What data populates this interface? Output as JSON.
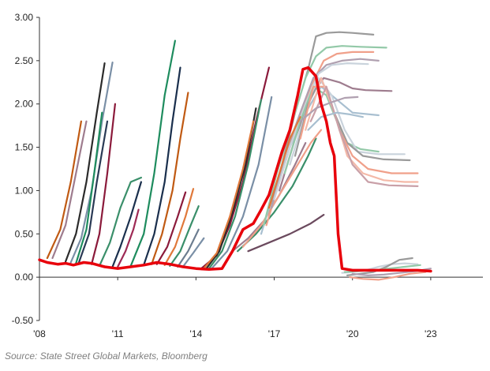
{
  "source": "Source: State Street Global Markets, Bloomberg",
  "chart_data": {
    "type": "line",
    "title": "",
    "xlabel": "",
    "ylabel": "",
    "xlim": [
      2008,
      2025
    ],
    "ylim": [
      -0.5,
      3.0
    ],
    "x_ticks": [
      2008,
      2011,
      2014,
      2017,
      2020,
      2023
    ],
    "x_tick_labels": [
      "'08",
      "'11",
      "'14",
      "'17",
      "'20",
      "'23"
    ],
    "y_ticks": [
      3.0,
      2.5,
      2.0,
      1.5,
      1.0,
      0.5,
      0.0,
      -0.5
    ],
    "y_tick_labels": [
      "3.00",
      "2.50",
      "2.00",
      "1.50",
      "1.00",
      "0.50",
      "0.00",
      "-0.50"
    ],
    "grid": false,
    "legend": "none",
    "highlight": {
      "color": "#e8000b",
      "x": [
        2008.0,
        2008.3,
        2008.7,
        2009.0,
        2009.3,
        2009.7,
        2010.0,
        2010.5,
        2011.0,
        2011.5,
        2012.0,
        2012.5,
        2013.0,
        2013.5,
        2014.0,
        2014.5,
        2015.0,
        2015.4,
        2015.8,
        2016.2,
        2016.5,
        2016.8,
        2017.0,
        2017.3,
        2017.6,
        2017.9,
        2018.1,
        2018.3,
        2018.6,
        2018.8,
        2019.0,
        2019.15,
        2019.3,
        2019.45,
        2019.6,
        2020.0,
        2020.5,
        2021.0,
        2021.5,
        2022.0,
        2022.5,
        2023.0
      ],
      "y": [
        0.2,
        0.17,
        0.15,
        0.16,
        0.14,
        0.17,
        0.16,
        0.12,
        0.1,
        0.12,
        0.14,
        0.17,
        0.15,
        0.12,
        0.1,
        0.09,
        0.1,
        0.3,
        0.55,
        0.62,
        0.78,
        0.95,
        1.15,
        1.45,
        1.7,
        2.1,
        2.4,
        2.42,
        2.32,
        2.0,
        1.8,
        1.55,
        1.4,
        0.5,
        0.1,
        0.08,
        0.08,
        0.08,
        0.08,
        0.08,
        0.08,
        0.07
      ]
    },
    "series": [
      {
        "color": "#2b2b2b",
        "x": [
          2009.0,
          2009.4,
          2009.8,
          2010.2,
          2010.5
        ],
        "y": [
          0.18,
          0.5,
          1.1,
          1.9,
          2.47
        ]
      },
      {
        "color": "#7a8fa6",
        "x": [
          2009.2,
          2009.6,
          2010.0,
          2010.4,
          2010.8
        ],
        "y": [
          0.17,
          0.45,
          1.0,
          1.8,
          2.48
        ]
      },
      {
        "color": "#9e7c8e",
        "x": [
          2008.5,
          2009.0,
          2009.4,
          2009.8
        ],
        "y": [
          0.22,
          0.6,
          1.2,
          1.8
        ]
      },
      {
        "color": "#c05a13",
        "x": [
          2008.3,
          2008.8,
          2009.2,
          2009.6
        ],
        "y": [
          0.22,
          0.55,
          1.1,
          1.8
        ]
      },
      {
        "color": "#1e8c5e",
        "x": [
          2009.4,
          2009.8,
          2010.1,
          2010.4
        ],
        "y": [
          0.16,
          0.55,
          1.2,
          1.9
        ]
      },
      {
        "color": "#2a3a55",
        "x": [
          2009.5,
          2009.9,
          2010.2,
          2010.6
        ],
        "y": [
          0.16,
          0.5,
          1.1,
          1.8
        ]
      },
      {
        "color": "#8b1a3b",
        "x": [
          2010.0,
          2010.3,
          2010.6,
          2010.9
        ],
        "y": [
          0.15,
          0.5,
          1.2,
          2.0
        ]
      },
      {
        "color": "#3a8f6a",
        "x": [
          2010.3,
          2010.7,
          2011.1,
          2011.5,
          2011.9
        ],
        "y": [
          0.13,
          0.4,
          0.8,
          1.1,
          1.15
        ]
      },
      {
        "color": "#1a2f4d",
        "x": [
          2010.8,
          2011.1,
          2011.5,
          2011.9
        ],
        "y": [
          0.12,
          0.35,
          0.7,
          1.1
        ]
      },
      {
        "color": "#9e2a55",
        "x": [
          2011.0,
          2011.3,
          2011.6,
          2011.8
        ],
        "y": [
          0.12,
          0.3,
          0.55,
          0.78
        ]
      },
      {
        "color": "#1e8c5e",
        "x": [
          2011.5,
          2012.0,
          2012.4,
          2012.8,
          2013.2
        ],
        "y": [
          0.13,
          0.5,
          1.2,
          2.1,
          2.73
        ]
      },
      {
        "color": "#1a2f4d",
        "x": [
          2012.0,
          2012.4,
          2012.8,
          2013.1,
          2013.4
        ],
        "y": [
          0.14,
          0.5,
          1.1,
          1.8,
          2.42
        ]
      },
      {
        "color": "#c05a13",
        "x": [
          2012.3,
          2012.7,
          2013.1,
          2013.4,
          2013.7
        ],
        "y": [
          0.15,
          0.5,
          1.0,
          1.6,
          2.13
        ]
      },
      {
        "color": "#8b1a3b",
        "x": [
          2012.5,
          2012.9,
          2013.3,
          2013.6
        ],
        "y": [
          0.15,
          0.35,
          0.7,
          0.98
        ]
      },
      {
        "color": "#e0783a",
        "x": [
          2012.8,
          2013.2,
          2013.6,
          2013.9
        ],
        "y": [
          0.14,
          0.35,
          0.7,
          1.02
        ]
      },
      {
        "color": "#3a8f6a",
        "x": [
          2013.0,
          2013.4,
          2013.8,
          2014.1
        ],
        "y": [
          0.13,
          0.3,
          0.6,
          0.82
        ]
      },
      {
        "color": "#6b7c8f",
        "x": [
          2013.3,
          2013.7,
          2014.1
        ],
        "y": [
          0.12,
          0.3,
          0.55
        ]
      },
      {
        "color": "#7a8fa6",
        "x": [
          2013.5,
          2013.9,
          2014.3
        ],
        "y": [
          0.12,
          0.28,
          0.45
        ]
      },
      {
        "color": "#8b1a3b",
        "x": [
          2014.2,
          2014.8,
          2015.3,
          2015.8,
          2016.3,
          2016.8
        ],
        "y": [
          0.1,
          0.25,
          0.6,
          1.1,
          1.8,
          2.42
        ]
      },
      {
        "color": "#3a8f6a",
        "x": [
          2014.5,
          2015.0,
          2015.5,
          2016.0,
          2016.5
        ],
        "y": [
          0.1,
          0.3,
          0.7,
          1.3,
          2.05
        ]
      },
      {
        "color": "#2b2b2b",
        "x": [
          2014.4,
          2014.9,
          2015.4,
          2015.9,
          2016.3
        ],
        "y": [
          0.1,
          0.3,
          0.75,
          1.3,
          1.95
        ]
      },
      {
        "color": "#e0783a",
        "x": [
          2014.3,
          2014.8,
          2015.3,
          2015.8,
          2016.2
        ],
        "y": [
          0.1,
          0.28,
          0.7,
          1.25,
          1.8
        ]
      },
      {
        "color": "#7a8fa6",
        "x": [
          2014.6,
          2015.2,
          2015.8,
          2016.4,
          2016.9
        ],
        "y": [
          0.1,
          0.3,
          0.7,
          1.3,
          2.08
        ]
      },
      {
        "color": "#9e7c8e",
        "x": [
          2015.4,
          2016.0,
          2016.6,
          2017.2,
          2017.8,
          2018.2
        ],
        "y": [
          0.3,
          0.45,
          0.65,
          0.95,
          1.3,
          1.55
        ]
      },
      {
        "color": "#3a8f6a",
        "x": [
          2015.6,
          2016.3,
          2017.0,
          2017.7,
          2018.3,
          2018.6
        ],
        "y": [
          0.3,
          0.5,
          0.75,
          1.05,
          1.4,
          1.6
        ]
      },
      {
        "color": "#f0a08a",
        "x": [
          2015.8,
          2016.5,
          2017.2,
          2017.8,
          2018.4,
          2018.8
        ],
        "y": [
          0.35,
          0.6,
          0.95,
          1.25,
          1.55,
          1.7
        ]
      },
      {
        "color": "#6b4a5e",
        "x": [
          2016.0,
          2016.8,
          2017.6,
          2018.4,
          2018.9
        ],
        "y": [
          0.3,
          0.4,
          0.5,
          0.62,
          0.72
        ]
      },
      {
        "color": "#a8bfd0",
        "x": [
          2016.5,
          2017.0,
          2017.6,
          2018.2,
          2018.8,
          2019.2,
          2020.0,
          2021.0
        ],
        "y": [
          0.5,
          1.0,
          1.5,
          1.9,
          2.2,
          2.1,
          1.9,
          1.87
        ]
      },
      {
        "color": "#9a9a9a",
        "x": [
          2016.8,
          2017.3,
          2017.8,
          2018.3,
          2018.6,
          2019.0,
          2019.5,
          2020.0,
          2020.8
        ],
        "y": [
          0.7,
          1.3,
          1.9,
          2.4,
          2.78,
          2.82,
          2.83,
          2.82,
          2.8
        ]
      },
      {
        "color": "#93c9a8",
        "x": [
          2016.6,
          2017.1,
          2017.7,
          2018.2,
          2018.6,
          2019.0,
          2019.6,
          2020.3,
          2021.3
        ],
        "y": [
          0.6,
          1.2,
          1.8,
          2.3,
          2.55,
          2.65,
          2.67,
          2.66,
          2.65
        ]
      },
      {
        "color": "#f0a08a",
        "x": [
          2016.7,
          2017.2,
          2017.8,
          2018.4,
          2018.9,
          2019.4,
          2020.0,
          2020.8
        ],
        "y": [
          0.6,
          1.1,
          1.7,
          2.2,
          2.5,
          2.58,
          2.6,
          2.6
        ]
      },
      {
        "color": "#b0a0b0",
        "x": [
          2016.9,
          2017.4,
          2018.0,
          2018.5,
          2019.0,
          2019.6,
          2020.3,
          2021.0
        ],
        "y": [
          0.8,
          1.4,
          1.9,
          2.3,
          2.45,
          2.5,
          2.52,
          2.5
        ]
      },
      {
        "color": "#c9d3dc",
        "x": [
          2017.0,
          2017.6,
          2018.2,
          2018.7,
          2019.2,
          2019.8,
          2020.6
        ],
        "y": [
          0.9,
          1.5,
          2.0,
          2.35,
          2.45,
          2.47,
          2.46
        ]
      },
      {
        "color": "#9e7c8e",
        "x": [
          2017.2,
          2017.8,
          2018.4,
          2018.9,
          2019.5,
          2020.0,
          2020.5,
          2021.5
        ],
        "y": [
          1.0,
          1.6,
          2.1,
          2.3,
          2.25,
          2.18,
          2.16,
          2.15
        ]
      },
      {
        "color": "#93c9a8",
        "x": [
          2017.4,
          2018.0,
          2018.5,
          2019.0,
          2019.4,
          2019.8,
          2020.3,
          2021.0
        ],
        "y": [
          1.2,
          1.8,
          2.2,
          2.1,
          1.8,
          1.55,
          1.48,
          1.45
        ]
      },
      {
        "color": "#c9d3dc",
        "x": [
          2017.6,
          2018.2,
          2018.7,
          2019.2,
          2019.7,
          2020.2,
          2021.0,
          2022.0
        ],
        "y": [
          1.3,
          1.9,
          2.3,
          2.1,
          1.7,
          1.45,
          1.42,
          1.42
        ]
      },
      {
        "color": "#9a9a9a",
        "x": [
          2017.8,
          2018.3,
          2018.8,
          2019.3,
          2019.8,
          2020.4,
          2021.2,
          2022.2
        ],
        "y": [
          1.4,
          2.0,
          2.3,
          1.9,
          1.55,
          1.4,
          1.36,
          1.35
        ]
      },
      {
        "color": "#f0a08a",
        "x": [
          2018.0,
          2018.5,
          2019.0,
          2019.5,
          2020.0,
          2020.6,
          2021.5,
          2022.5
        ],
        "y": [
          1.6,
          2.2,
          2.2,
          1.7,
          1.4,
          1.25,
          1.2,
          1.2
        ]
      },
      {
        "color": "#f4b9a8",
        "x": [
          2018.2,
          2018.8,
          2019.3,
          2019.8,
          2020.4,
          2021.2,
          2022.0,
          2022.5
        ],
        "y": [
          1.7,
          2.3,
          1.9,
          1.4,
          1.2,
          1.12,
          1.1,
          1.1
        ]
      },
      {
        "color": "#c9a0a8",
        "x": [
          2018.4,
          2019.0,
          2019.5,
          2020.0,
          2020.6,
          2021.4,
          2022.5
        ],
        "y": [
          1.8,
          2.2,
          1.7,
          1.3,
          1.1,
          1.06,
          1.05
        ]
      },
      {
        "color": "#b0a0b0",
        "x": [
          2018.0,
          2018.6,
          2019.2,
          2019.7,
          2020.2
        ],
        "y": [
          1.8,
          1.95,
          2.02,
          2.07,
          2.08
        ]
      },
      {
        "color": "#a8bfd0",
        "x": [
          2018.3,
          2018.8,
          2019.4,
          2019.9,
          2020.4
        ],
        "y": [
          1.7,
          1.85,
          1.9,
          1.88,
          1.85
        ]
      },
      {
        "color": "#e0783a",
        "x": [
          2016.8,
          2017.2,
          2017.6,
          2018.0
        ],
        "y": [
          0.8,
          1.2,
          1.6,
          1.85
        ]
      },
      {
        "color": "#c9d3dc",
        "x": [
          2019.6,
          2020.0,
          2020.5,
          2021.0,
          2021.5,
          2022.0,
          2022.5
        ],
        "y": [
          0.05,
          0.06,
          0.08,
          0.12,
          0.15,
          0.16,
          0.15
        ]
      },
      {
        "color": "#9a9a9a",
        "x": [
          2019.8,
          2020.3,
          2020.8,
          2021.3,
          2021.8,
          2022.3
        ],
        "y": [
          0.02,
          0.04,
          0.06,
          0.12,
          0.2,
          0.22
        ]
      },
      {
        "color": "#93c9a8",
        "x": [
          2019.7,
          2020.2,
          2020.8,
          2021.4,
          2022.0,
          2022.6
        ],
        "y": [
          0.06,
          0.07,
          0.08,
          0.1,
          0.12,
          0.14
        ]
      },
      {
        "color": "#f0a08a",
        "x": [
          2019.9,
          2020.4,
          2021.0,
          2021.6,
          2022.2,
          2022.8
        ],
        "y": [
          0.0,
          -0.02,
          -0.03,
          0.0,
          0.04,
          0.06
        ]
      },
      {
        "color": "#b0a0b0",
        "x": [
          2020.0,
          2020.6,
          2021.2,
          2021.8,
          2022.4,
          2023.0
        ],
        "y": [
          0.04,
          0.02,
          0.03,
          0.05,
          0.07,
          0.1
        ]
      }
    ]
  }
}
